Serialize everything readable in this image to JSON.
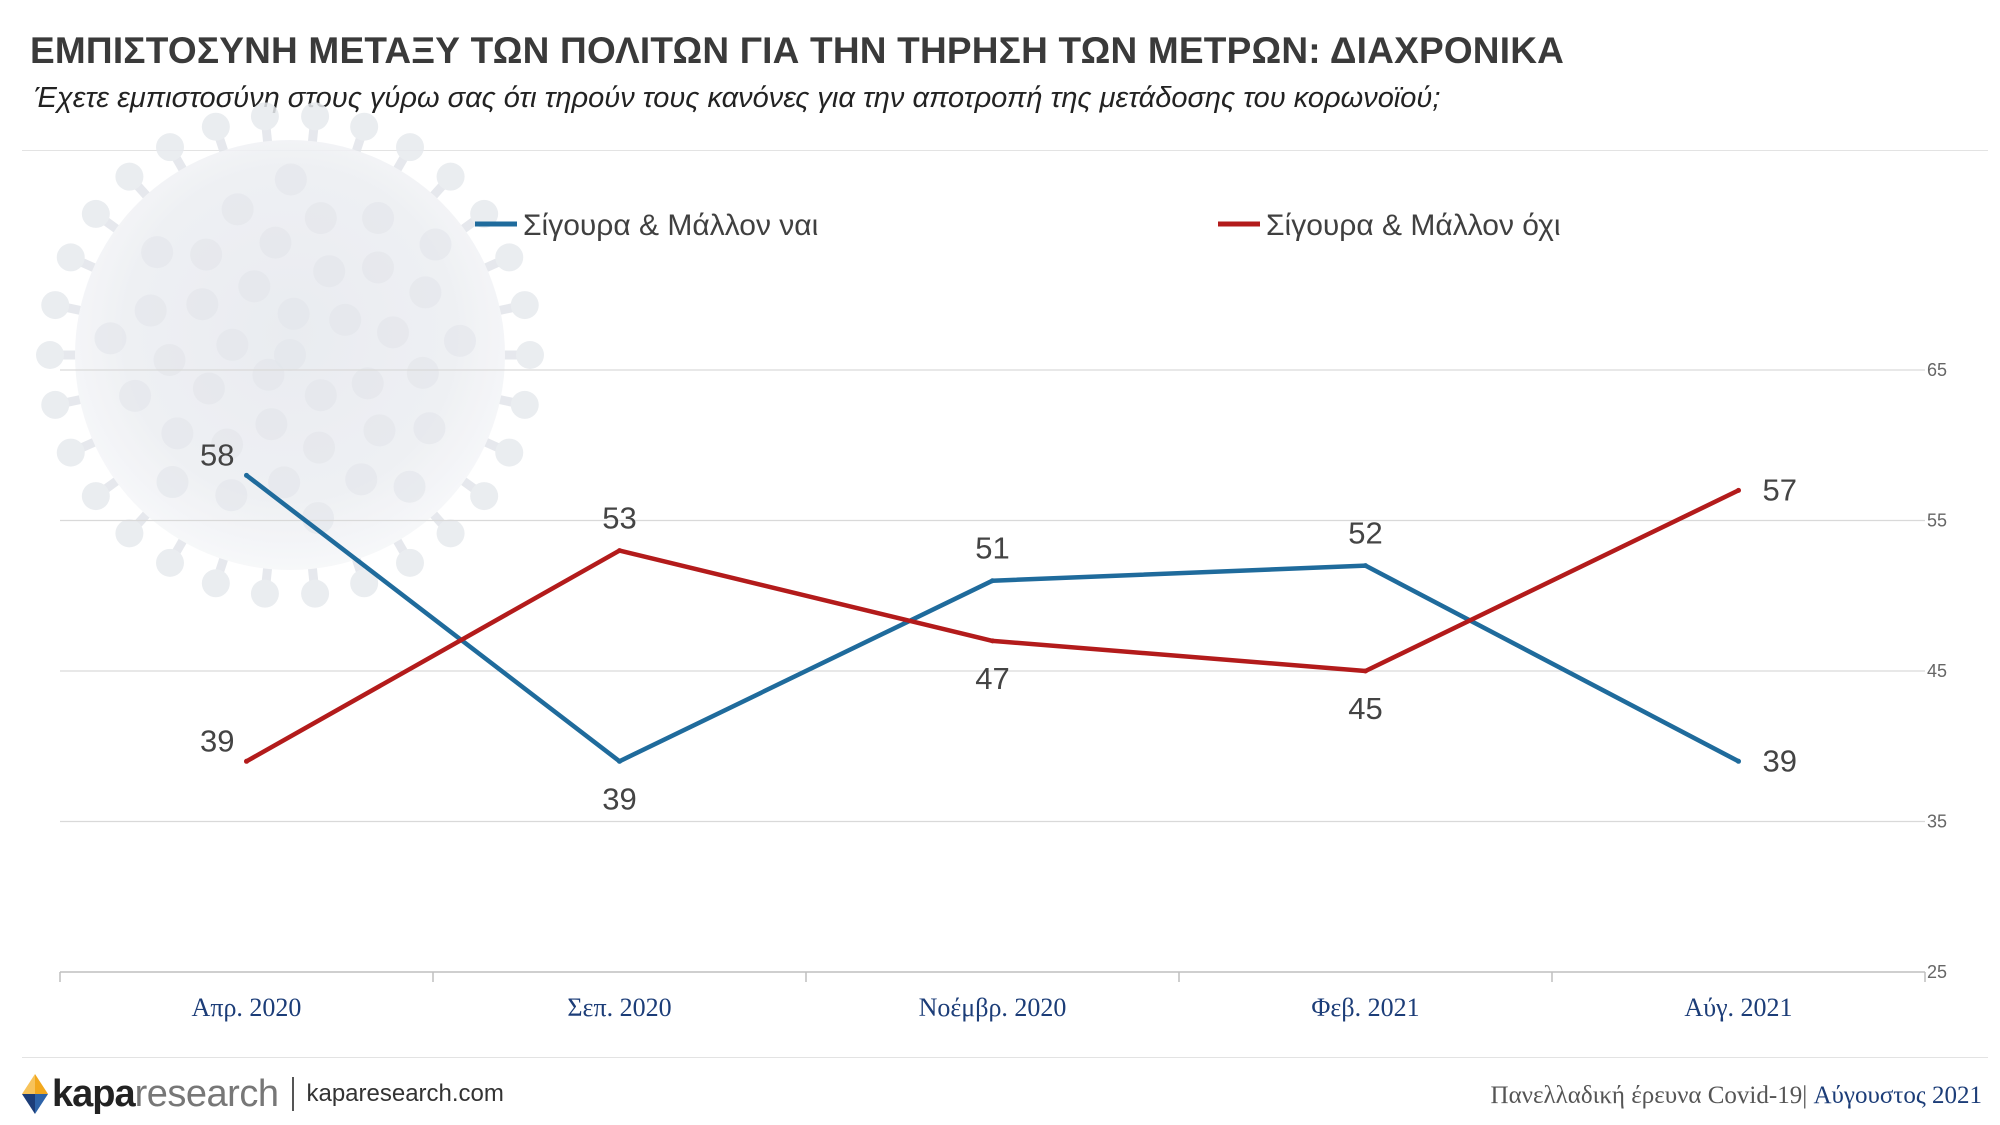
{
  "header": {
    "title": "ΕΜΠΙΣΤΟΣΥΝΗ ΜΕΤΑΞΥ ΤΩΝ ΠΟΛΙΤΩΝ ΓΙΑ ΤΗΝ ΤΗΡΗΣΗ ΤΩΝ ΜΕΤΡΩΝ: ΔΙΑΧΡΟΝΙΚΑ",
    "subtitle": "Έχετε εμπιστοσύνη στους γύρω σας ότι τηρούν τους κανόνες για την αποτροπή της μετάδοσης του κορωνοϊού;"
  },
  "chart_data": {
    "type": "line",
    "categories": [
      "Απρ. 2020",
      "Σεπ. 2020",
      "Νοέμβρ. 2020",
      "Φεβ. 2021",
      "Αύγ. 2021"
    ],
    "series": [
      {
        "name": "Σίγουρα & Μάλλον ναι",
        "values": [
          58,
          39,
          51,
          52,
          39
        ],
        "color": "#1f6b9c"
      },
      {
        "name": "Σίγουρα & Μάλλον όχι",
        "values": [
          39,
          53,
          47,
          45,
          57
        ],
        "color": "#b31b1b"
      }
    ],
    "y_ticks": [
      25,
      35,
      45,
      55,
      65
    ],
    "ylim": [
      25,
      65
    ],
    "y_axis_position": "right",
    "grid": true,
    "legend_position": "top"
  },
  "footer": {
    "brand_bold": "kapa",
    "brand_light": "research",
    "url": "kaparesearch.com",
    "survey": "Πανελλαδική έρευνα Covid-19",
    "separator": "|",
    "month": " Αύγουστος 2021"
  },
  "colors": {
    "blue": "#1f6b9c",
    "red": "#b31b1b",
    "grid": "#d9d9d9",
    "category_label": "#1c3d78"
  }
}
